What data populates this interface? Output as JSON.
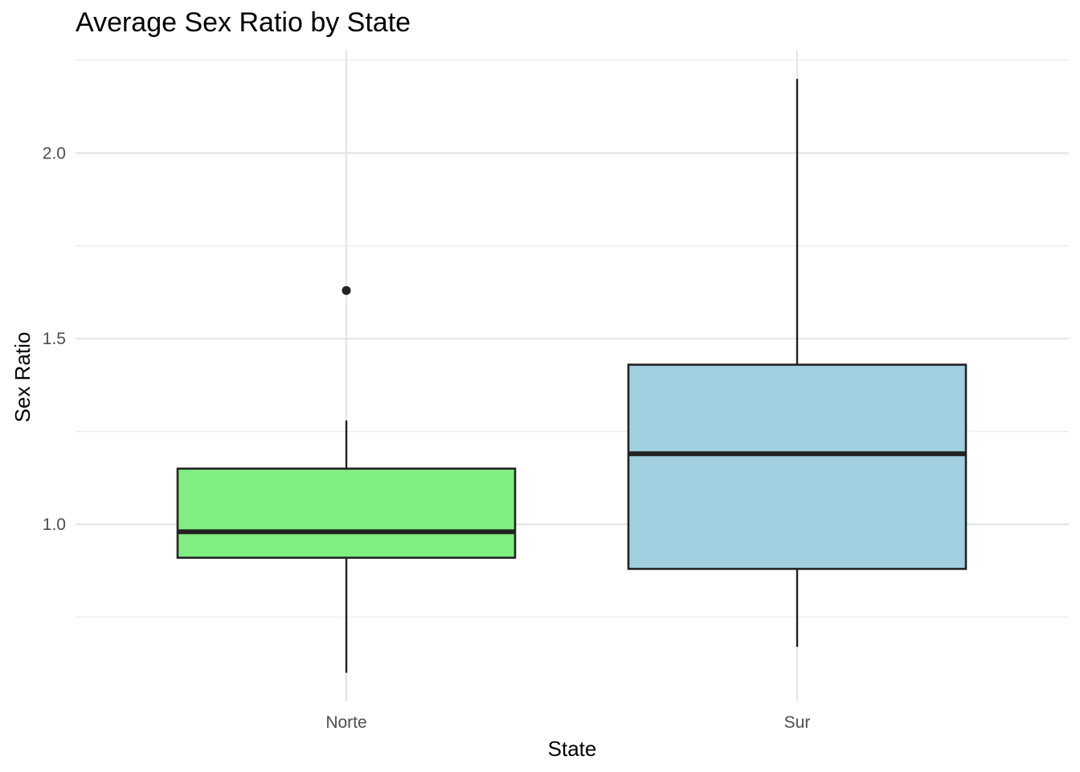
{
  "chart_data": {
    "type": "boxplot",
    "title": "Average Sex Ratio by State",
    "xlabel": "State",
    "ylabel": "Sex Ratio",
    "ylim": [
      0.55,
      2.25
    ],
    "yticks": [
      1.0,
      1.5,
      2.0
    ],
    "ytick_labels": [
      "1.0",
      "1.5",
      "2.0"
    ],
    "minor_yticks": [
      0.75,
      1.25,
      1.75,
      2.25
    ],
    "grid": true,
    "legend": "none",
    "categories": [
      "Norte",
      "Sur"
    ],
    "boxes": [
      {
        "category": "Norte",
        "whisker_low": 0.6,
        "q1": 0.91,
        "median": 0.98,
        "q3": 1.15,
        "whisker_high": 1.28,
        "outliers": [
          1.63
        ],
        "color": "#80ee80"
      },
      {
        "category": "Sur",
        "whisker_low": 0.67,
        "q1": 0.88,
        "median": 1.19,
        "q3": 1.43,
        "whisker_high": 2.2,
        "outliers": [],
        "color": "#a0cfe0"
      }
    ]
  }
}
